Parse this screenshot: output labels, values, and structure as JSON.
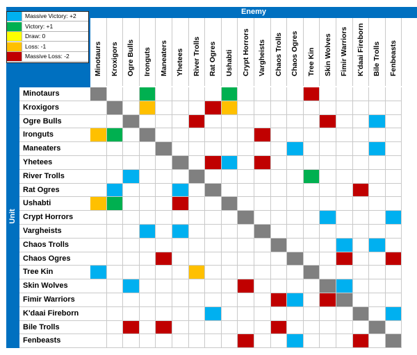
{
  "legend": [
    {
      "label": "Massive Victory: +2",
      "color": "#00b0f0"
    },
    {
      "label": "Victory: +1",
      "color": "#00b050"
    },
    {
      "label": "Draw: 0",
      "color": "#ffff00"
    },
    {
      "label": "Loss: -1",
      "color": "#ffc000"
    },
    {
      "label": "Massive Loss: -2",
      "color": "#c00000"
    }
  ],
  "self_color": "#808080",
  "chart_data": {
    "type": "heatmap",
    "title_columns": "Enemy",
    "title_rows": "Unit",
    "columns": [
      "Minotaurs",
      "Kroxigors",
      "Ogre Bulls",
      "Ironguts",
      "Maneaters",
      "Yhetees",
      "River Trolls",
      "Rat Ogres",
      "Ushabti",
      "Crypt Horrors",
      "Vargheists",
      "Chaos Trolls",
      "Chaos Ogres",
      "Tree Kin",
      "Skin Wolves",
      "Fimir Warriors",
      "K'daai Fireborn",
      "Bile Trolls",
      "Fenbeasts"
    ],
    "rows": [
      "Minotaurs",
      "Kroxigors",
      "Ogre Bulls",
      "Ironguts",
      "Maneaters",
      "Yhetees",
      "River Trolls",
      "Rat Ogres",
      "Ushabti",
      "Crypt Horrors",
      "Vargheists",
      "Chaos Trolls",
      "Chaos Ogres",
      "Tree Kin",
      "Skin Wolves",
      "Fimir Warriors",
      "K'daai Fireborn",
      "Bile Trolls",
      "Fenbeasts"
    ],
    "value_scale": {
      "2": "Massive Victory",
      "1": "Victory",
      "0": "Draw",
      "-1": "Loss",
      "-2": "Massive Loss"
    },
    "values": [
      [
        null,
        null,
        null,
        1,
        null,
        null,
        null,
        null,
        1,
        null,
        null,
        null,
        null,
        -2,
        null,
        null,
        null,
        null,
        null
      ],
      [
        null,
        null,
        null,
        -1,
        null,
        null,
        null,
        -2,
        -1,
        null,
        null,
        null,
        null,
        null,
        null,
        null,
        null,
        null,
        null
      ],
      [
        null,
        null,
        null,
        null,
        null,
        null,
        -2,
        null,
        null,
        null,
        null,
        null,
        null,
        null,
        -2,
        null,
        null,
        2,
        null
      ],
      [
        -1,
        1,
        null,
        null,
        null,
        null,
        null,
        null,
        null,
        null,
        -2,
        null,
        null,
        null,
        null,
        null,
        null,
        null,
        null
      ],
      [
        null,
        null,
        null,
        null,
        null,
        null,
        null,
        null,
        null,
        null,
        null,
        null,
        2,
        null,
        null,
        null,
        null,
        2,
        null
      ],
      [
        null,
        null,
        null,
        null,
        null,
        null,
        null,
        -2,
        2,
        null,
        -2,
        null,
        null,
        null,
        null,
        null,
        null,
        null,
        null
      ],
      [
        null,
        null,
        2,
        null,
        null,
        null,
        null,
        null,
        null,
        null,
        null,
        null,
        null,
        1,
        null,
        null,
        null,
        null,
        null
      ],
      [
        null,
        2,
        null,
        null,
        null,
        2,
        null,
        null,
        null,
        null,
        null,
        null,
        null,
        null,
        null,
        null,
        -2,
        null,
        null
      ],
      [
        -1,
        1,
        null,
        null,
        null,
        -2,
        null,
        null,
        null,
        null,
        null,
        null,
        null,
        null,
        null,
        null,
        null,
        null,
        null
      ],
      [
        null,
        null,
        null,
        null,
        null,
        null,
        null,
        null,
        null,
        null,
        null,
        null,
        null,
        null,
        2,
        null,
        null,
        null,
        2
      ],
      [
        null,
        null,
        null,
        2,
        null,
        2,
        null,
        null,
        null,
        null,
        null,
        null,
        null,
        null,
        null,
        null,
        null,
        null,
        null
      ],
      [
        null,
        null,
        null,
        null,
        null,
        null,
        null,
        null,
        null,
        null,
        null,
        null,
        null,
        null,
        null,
        2,
        null,
        2,
        null
      ],
      [
        null,
        null,
        null,
        null,
        -2,
        null,
        null,
        null,
        null,
        null,
        null,
        null,
        null,
        null,
        null,
        -2,
        null,
        null,
        -2
      ],
      [
        2,
        null,
        null,
        null,
        null,
        null,
        -1,
        null,
        null,
        null,
        null,
        null,
        null,
        null,
        null,
        null,
        null,
        null,
        null
      ],
      [
        null,
        null,
        2,
        null,
        null,
        null,
        null,
        null,
        null,
        -2,
        null,
        null,
        null,
        null,
        null,
        2,
        null,
        null,
        null
      ],
      [
        null,
        null,
        null,
        null,
        null,
        null,
        null,
        null,
        null,
        null,
        null,
        -2,
        2,
        null,
        -2,
        null,
        null,
        null,
        null
      ],
      [
        null,
        null,
        null,
        null,
        null,
        null,
        null,
        2,
        null,
        null,
        null,
        null,
        null,
        null,
        null,
        null,
        null,
        null,
        2
      ],
      [
        null,
        null,
        -2,
        null,
        -2,
        null,
        null,
        null,
        null,
        null,
        null,
        -2,
        null,
        null,
        null,
        null,
        null,
        null,
        null
      ],
      [
        null,
        null,
        null,
        null,
        null,
        null,
        null,
        null,
        null,
        -2,
        null,
        null,
        2,
        null,
        null,
        null,
        -2,
        null,
        null
      ]
    ]
  }
}
